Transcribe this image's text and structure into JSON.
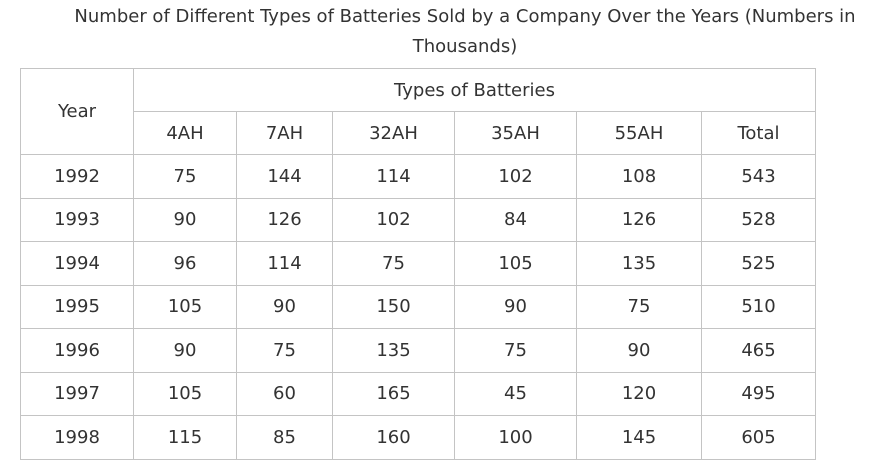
{
  "chart_data": {
    "type": "table",
    "title_line1": "Number of Different Types of Batteries Sold by a Company Over the Years (Numbers in",
    "title_line2": "Thousands)",
    "row_header": "Year",
    "group_header": "Types of Batteries",
    "columns": [
      "4AH",
      "7AH",
      "32AH",
      "35AH",
      "55AH",
      "Total"
    ],
    "rows": [
      {
        "year": "1992",
        "values": [
          "75",
          "144",
          "114",
          "102",
          "108",
          "543"
        ]
      },
      {
        "year": "1993",
        "values": [
          "90",
          "126",
          "102",
          "84",
          "126",
          "528"
        ]
      },
      {
        "year": "1994",
        "values": [
          "96",
          "114",
          "75",
          "105",
          "135",
          "525"
        ]
      },
      {
        "year": "1995",
        "values": [
          "105",
          "90",
          "150",
          "90",
          "75",
          "510"
        ]
      },
      {
        "year": "1996",
        "values": [
          "90",
          "75",
          "135",
          "75",
          "90",
          "465"
        ]
      },
      {
        "year": "1997",
        "values": [
          "105",
          "60",
          "165",
          "45",
          "120",
          "495"
        ]
      },
      {
        "year": "1998",
        "values": [
          "115",
          "85",
          "160",
          "100",
          "145",
          "605"
        ]
      }
    ]
  }
}
